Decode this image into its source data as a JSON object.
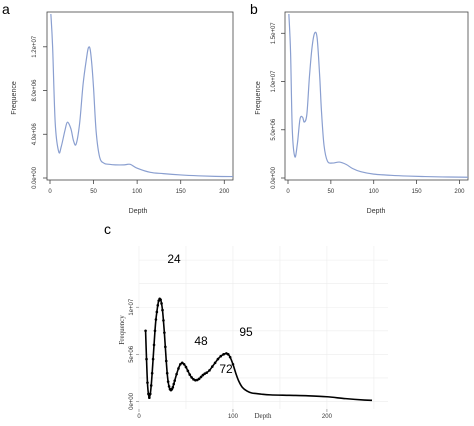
{
  "chart_data": [
    {
      "panel": "a",
      "type": "line",
      "xlabel": "Depth",
      "ylabel": "Frequence",
      "xlim": [
        0,
        210
      ],
      "ylim": [
        0,
        15000000
      ],
      "xticks": [
        "0",
        "50",
        "100",
        "150",
        "200"
      ],
      "yticks": [
        "0.0e+00",
        "4.0e+06",
        "8.0e+06",
        "1.2e+07"
      ],
      "color": "#8a9fd0",
      "x": [
        1,
        3,
        6,
        10,
        13,
        17,
        20,
        24,
        27,
        30,
        34,
        38,
        42,
        44,
        46,
        48,
        50,
        53,
        57,
        62,
        68,
        75,
        85,
        92,
        100,
        115,
        130,
        150,
        170,
        190,
        210
      ],
      "y": [
        15000000,
        12000000,
        5000000,
        2400000,
        2900000,
        4300000,
        5100000,
        4500000,
        3400000,
        3100000,
        5000000,
        8600000,
        11000000,
        11900000,
        11800000,
        10400000,
        8200000,
        4200000,
        1900000,
        1350000,
        1250000,
        1200000,
        1200000,
        1250000,
        900000,
        520000,
        400000,
        280000,
        200000,
        150000,
        130000
      ]
    },
    {
      "panel": "b",
      "type": "line",
      "xlabel": "Depth",
      "ylabel": "Frequence",
      "xlim": [
        0,
        210
      ],
      "ylim": [
        0,
        17000000
      ],
      "xticks": [
        "0",
        "50",
        "100",
        "150",
        "200"
      ],
      "yticks": [
        "0.0e+00",
        "5.0e+06",
        "1.0e+07",
        "1.5e+07"
      ],
      "color": "#8a9fd0",
      "x": [
        1,
        3,
        5,
        8,
        11,
        14,
        17,
        19,
        22,
        25,
        28,
        31,
        34,
        37,
        39,
        42,
        46,
        52,
        60,
        68,
        75,
        85,
        100,
        120,
        140,
        160,
        180,
        200,
        210
      ],
      "y": [
        17000000,
        13000000,
        5000000,
        2200000,
        3600000,
        6100000,
        6300000,
        5800000,
        6600000,
        10500000,
        13500000,
        15000000,
        14500000,
        10500000,
        7000000,
        3400000,
        1750000,
        1550000,
        1650000,
        1400000,
        1000000,
        650000,
        400000,
        280000,
        200000,
        150000,
        110000,
        90000,
        80000
      ]
    },
    {
      "panel": "c",
      "type": "line",
      "xlabel": "Depth",
      "ylabel": "Frequency",
      "xlim": [
        0,
        265
      ],
      "ylim": [
        -800000,
        16500000
      ],
      "xticks": [
        "0",
        "100",
        "200"
      ],
      "xtick_values": [
        0,
        100,
        200
      ],
      "yticks": [
        "0e+00",
        "5e+06",
        "1e+07"
      ],
      "ytick_values": [
        0,
        5000000,
        10000000
      ],
      "color": "#000000",
      "grid": true,
      "peak_labels": [
        "24",
        "48",
        "72",
        "95"
      ],
      "x": [
        7,
        8,
        9,
        10,
        11,
        12,
        13,
        14,
        15,
        16,
        17,
        18,
        19,
        20,
        21,
        22,
        23,
        24,
        25,
        26,
        27,
        28,
        29,
        30,
        31,
        32,
        33,
        34,
        35,
        36,
        37,
        38,
        40,
        42,
        44,
        46,
        48,
        50,
        52,
        54,
        56,
        58,
        60,
        62,
        64,
        66,
        68,
        70,
        72,
        75,
        78,
        81,
        84,
        87,
        90,
        93,
        95,
        97,
        100,
        103,
        106,
        110,
        115,
        120,
        130,
        140,
        160,
        180,
        200,
        220,
        240,
        248
      ],
      "y": [
        7500000,
        4500000,
        2000000,
        800000,
        400000,
        800000,
        1700000,
        3000000,
        4500000,
        6000000,
        7500000,
        8700000,
        9500000,
        10200000,
        10700000,
        10900000,
        10800000,
        10400000,
        9700000,
        8600000,
        7300000,
        5800000,
        4300000,
        3000000,
        2100000,
        1600000,
        1300000,
        1200000,
        1300000,
        1500000,
        1850000,
        2200000,
        2900000,
        3500000,
        3950000,
        4100000,
        3950000,
        3650000,
        3250000,
        2850000,
        2550000,
        2350000,
        2250000,
        2280000,
        2400000,
        2600000,
        2800000,
        2950000,
        3050000,
        3300000,
        3700000,
        4100000,
        4500000,
        4800000,
        5000000,
        5100000,
        5000000,
        4700000,
        3950000,
        3000000,
        2200000,
        1500000,
        1100000,
        900000,
        780000,
        700000,
        650000,
        600000,
        500000,
        300000,
        150000,
        120000
      ]
    }
  ]
}
